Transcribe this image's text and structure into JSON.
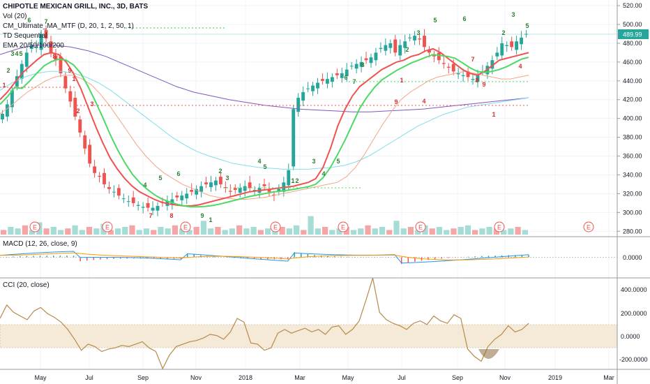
{
  "chart": {
    "title": "CHIPOTLE MEXICAN GRILL, INC., 3D, BATS",
    "legend": [
      "Vol (20)",
      "CM_Ultimate_MA_MTF (D, 20, 1, 2, 50, 1)",
      "TD Sequential",
      "EMA 20/50/100/200"
    ],
    "price_label": "489.99",
    "colors": {
      "up": "#26a69a",
      "down": "#ef5350",
      "ema20": "#ef5350",
      "ema50": "#f4a582",
      "ema100": "#80deea",
      "ema200": "#7e57c2",
      "cm_ma": "#4cd964",
      "macd": "#2196f3",
      "signal": "#ff9800",
      "cci": "#b8894a",
      "cci_band": "#f5ead8",
      "earnings": "#ef5350",
      "td_up": "#2e7d32",
      "td_down": "#d32f2f"
    }
  },
  "macd": {
    "label": "MACD (12, 26, close, 9)",
    "zero_label": "0.0000"
  },
  "cci": {
    "label": "CCI (20, close)",
    "ticks": [
      "400.0000",
      "200.0000",
      "0.0000",
      "-200.0000"
    ]
  },
  "earnings_marker": "E",
  "chart_data": [
    {
      "type": "candlestick",
      "title": "CHIPOTLE MEXICAN GRILL, INC., 3D, BATS",
      "y_ticks": [
        280,
        300,
        320,
        340,
        360,
        380,
        400,
        420,
        440,
        460,
        480,
        500,
        520
      ],
      "ylim": [
        275,
        526
      ],
      "x_ticks": [
        "May",
        "Jul",
        "Sep",
        "Nov",
        "2018",
        "Mar",
        "May",
        "Jul",
        "Sep",
        "Nov",
        "2019",
        "Mar"
      ],
      "last_price": 489.99,
      "close": [
        405,
        415,
        430,
        445,
        458,
        470,
        478,
        476,
        490,
        485,
        470,
        462,
        448,
        432,
        418,
        402,
        385,
        368,
        352,
        342,
        338,
        330,
        325,
        322,
        318,
        315,
        312,
        310,
        308,
        306,
        305,
        305,
        307,
        310,
        312,
        314,
        316,
        318,
        320,
        322,
        325,
        328,
        330,
        332,
        334,
        330,
        326,
        322,
        324,
        326,
        328,
        326,
        324,
        326,
        328,
        322,
        318,
        325,
        332,
        345,
        410,
        422,
        428,
        432,
        435,
        438,
        440,
        442,
        444,
        446,
        448,
        452,
        456,
        458,
        460,
        462,
        465,
        470,
        475,
        478,
        480,
        470,
        478,
        482,
        486,
        488,
        484,
        476,
        470,
        466,
        462,
        458,
        454,
        450,
        448,
        446,
        444,
        442,
        446,
        450,
        456,
        462,
        470,
        480,
        478,
        476,
        482,
        486,
        490
      ],
      "markers_earnings_at_months": [
        "Apr",
        "Jul",
        "Oct",
        "Jan",
        "Apr",
        "Jul",
        "Oct",
        "Jan"
      ],
      "td_sequential_labels": [
        "1",
        "2",
        "3",
        "4",
        "5",
        "6",
        "7",
        "8",
        "9",
        "1",
        "2",
        "3",
        "4",
        "5",
        "6",
        "7",
        "8",
        "9",
        "1",
        "2",
        "3",
        "4",
        "5"
      ],
      "ema20": [
        420,
        428,
        438,
        448,
        455,
        462,
        468,
        470,
        468,
        460,
        448,
        432,
        412,
        392,
        374,
        358,
        346,
        336,
        328,
        322,
        318,
        314,
        311,
        309,
        308,
        307,
        307,
        308,
        310,
        312,
        314,
        316,
        318,
        320,
        322,
        323,
        324,
        325,
        326,
        327,
        328,
        330,
        332,
        336,
        348,
        368,
        392,
        410,
        424,
        434,
        440,
        446,
        452,
        456,
        460,
        462,
        466,
        468,
        472,
        474,
        470,
        464,
        458,
        452,
        448,
        446,
        450,
        456,
        462,
        464,
        466,
        468,
        470
      ],
      "ema50": [
        405,
        412,
        420,
        428,
        434,
        440,
        444,
        446,
        446,
        442,
        436,
        426,
        414,
        400,
        386,
        372,
        360,
        350,
        342,
        336,
        330,
        326,
        322,
        318,
        316,
        315,
        314,
        314,
        315,
        316,
        318,
        320,
        322,
        324,
        326,
        328,
        330,
        332,
        338,
        348,
        362,
        378,
        394,
        408,
        420,
        428,
        434,
        440,
        444,
        446,
        448,
        450,
        448,
        446,
        444,
        442,
        442,
        444,
        446
      ],
      "ema100": [
        430,
        438,
        444,
        448,
        450,
        450,
        448,
        444,
        438,
        430,
        420,
        410,
        400,
        390,
        380,
        372,
        365,
        360,
        356,
        352,
        350,
        348,
        347,
        346,
        346,
        346,
        347,
        348,
        350,
        354,
        360,
        368,
        376,
        384,
        392,
        398,
        404,
        408,
        412,
        414,
        416,
        418,
        420,
        422
      ],
      "ema200": [
        468,
        474,
        478,
        478,
        476,
        472,
        466,
        458,
        450,
        442,
        434,
        428,
        424,
        420,
        417,
        414,
        412,
        410,
        409,
        408,
        407,
        407,
        408,
        409,
        410,
        412,
        414,
        416,
        418,
        420,
        422
      ]
    },
    {
      "type": "bar",
      "title": "Vol (20)",
      "values": [
        3,
        5,
        4,
        6,
        3,
        8,
        4,
        5,
        3,
        4,
        6,
        3,
        5,
        4,
        7,
        3,
        4,
        5,
        6,
        3,
        4,
        3,
        5,
        4,
        6,
        4,
        3,
        5,
        9,
        4,
        5,
        3,
        4,
        6,
        4,
        5,
        3,
        4,
        3,
        5,
        4,
        6,
        3,
        12,
        4,
        5,
        3,
        4,
        5,
        3,
        4,
        6,
        4,
        5,
        3,
        9,
        4,
        5,
        3,
        6,
        4,
        5,
        3,
        4,
        5,
        6,
        3,
        4,
        5,
        4,
        3,
        4,
        5,
        3
      ]
    },
    {
      "type": "line",
      "title": "MACD (12, 26, close, 9)",
      "y_ticks": [
        0
      ],
      "ylim": [
        -18,
        16
      ]
    },
    {
      "type": "line",
      "title": "CCI (20, close)",
      "y_ticks": [
        400,
        200,
        0,
        -200
      ],
      "ylim": [
        -260,
        470
      ],
      "band": [
        -100,
        100
      ],
      "values": [
        150,
        260,
        200,
        170,
        140,
        210,
        240,
        190,
        160,
        120,
        60,
        -20,
        -110,
        -60,
        -80,
        -120,
        -100,
        -90,
        -70,
        -80,
        -60,
        -40,
        -90,
        -120,
        -260,
        -150,
        -80,
        -60,
        -40,
        -30,
        -10,
        20,
        10,
        -20,
        40,
        150,
        120,
        -50,
        -60,
        -110,
        -90,
        30,
        60,
        30,
        50,
        70,
        40,
        60,
        20,
        80,
        90,
        20,
        60,
        130,
        300,
        480,
        200,
        140,
        110,
        90,
        60,
        110,
        130,
        100,
        170,
        130,
        110,
        180,
        150,
        -100,
        -160,
        -200,
        -80,
        -20,
        20,
        90,
        40,
        60,
        110
      ]
    }
  ]
}
